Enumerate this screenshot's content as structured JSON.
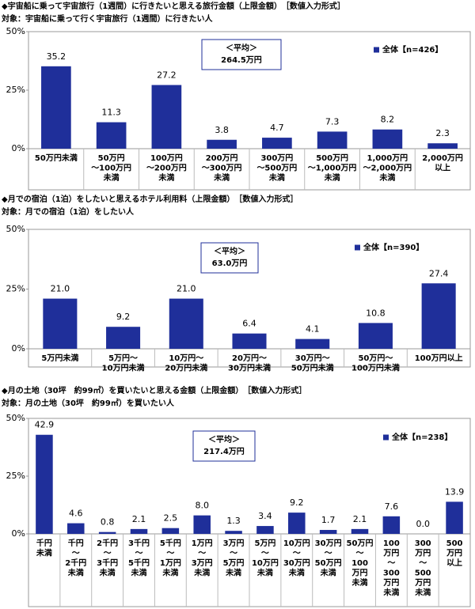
{
  "chart_data": [
    {
      "type": "bar",
      "title": "◆宇宙船に乗って宇宙旅行（1週間）に行きたいと思える旅行金額（上限金額）　［数値入力形式］",
      "subtitle": "対象：宇宙船に乗って行く宇宙旅行（1週間）に行きたい人",
      "categories": [
        "50万円未満",
        "50万円\n～100万円\n未満",
        "100万円\n～200万円\n未満",
        "200万円\n～300万円\n未満",
        "300万円\n～500万円\n未満",
        "500万円\n～1,000万円\n未満",
        "1,000万円\n～2,000万円\n未満",
        "2,000万円\n以上"
      ],
      "series": [
        {
          "name": "全体【n=426】",
          "color": "#1f2f9a",
          "values": [
            35.2,
            11.3,
            27.2,
            3.8,
            4.7,
            7.3,
            8.2,
            2.3
          ],
          "value_labels": [
            "35.2",
            "11.3",
            "27.2",
            "3.8",
            "4.7",
            "7.3",
            "8.2",
            "2.3"
          ]
        }
      ],
      "annotations": [
        "＜平均＞",
        "264.5万円"
      ],
      "ylim": [
        0,
        50
      ],
      "yticks": [
        {
          "value": 0,
          "label": "0%"
        },
        {
          "value": 25,
          "label": "25%"
        },
        {
          "value": 50,
          "label": "50%"
        }
      ]
    },
    {
      "type": "bar",
      "title": "◆月での宿泊（1泊）をしたいと思えるホテル利用料（上限金額）　［数値入力形式］",
      "subtitle": "対象：月での宿泊（1泊）をしたい人",
      "categories": [
        "5万円未満",
        "5万円～\n10万円未満",
        "10万円～\n20万円未満",
        "20万円～\n30万円未満",
        "30万円～\n50万円未満",
        "50万円～\n100万円未満",
        "100万円以上"
      ],
      "series": [
        {
          "name": "全体【n=390】",
          "color": "#1f2f9a",
          "values": [
            21.0,
            9.2,
            21.0,
            6.4,
            4.1,
            10.8,
            27.4
          ],
          "value_labels": [
            "21.0",
            "9.2",
            "21.0",
            "6.4",
            "4.1",
            "10.8",
            "27.4"
          ]
        }
      ],
      "annotations": [
        "＜平均＞",
        "63.0万円"
      ],
      "ylim": [
        0,
        50
      ],
      "yticks": [
        {
          "value": 0,
          "label": "0%"
        },
        {
          "value": 25,
          "label": "25%"
        },
        {
          "value": 50,
          "label": "50%"
        }
      ]
    },
    {
      "type": "bar",
      "title": "◆月の土地（30坪　約99㎡）を買いたいと思える金額（上限金額）　［数値入力形式］",
      "subtitle": "対象：月の土地（30坪　約99㎡）を買いたい人",
      "categories": [
        "千円\n未満",
        "千円\n～\n2千円\n未満",
        "2千円\n～\n3千円\n未満",
        "3千円\n～\n5千円\n未満",
        "5千円\n～\n1万円\n未満",
        "1万円\n～\n3万円\n未満",
        "3万円\n～\n5万円\n未満",
        "5万円\n～\n10万円\n未満",
        "10万円\n～\n30万円\n未満",
        "30万円\n～\n50万円\n未満",
        "50万円\n～\n100\n万円\n未満",
        "100\n万円\n～\n300\n万円\n未満",
        "300\n万円\n～\n500\n万円\n未満",
        "500\n万円\n以上"
      ],
      "series": [
        {
          "name": "全体【n=238】",
          "color": "#1f2f9a",
          "values": [
            42.9,
            4.6,
            0.8,
            2.1,
            2.5,
            8.0,
            1.3,
            3.4,
            9.2,
            1.7,
            2.1,
            7.6,
            0.0,
            13.9
          ],
          "value_labels": [
            "42.9",
            "4.6",
            "0.8",
            "2.1",
            "2.5",
            "8.0",
            "1.3",
            "3.4",
            "9.2",
            "1.7",
            "2.1",
            "7.6",
            "0.0",
            "13.9"
          ]
        }
      ],
      "annotations": [
        "＜平均＞",
        "217.4万円"
      ],
      "ylim": [
        0,
        50
      ],
      "yticks": [
        {
          "value": 0,
          "label": "0%"
        },
        {
          "value": 25,
          "label": "25%"
        },
        {
          "value": 50,
          "label": "50%"
        }
      ]
    }
  ]
}
